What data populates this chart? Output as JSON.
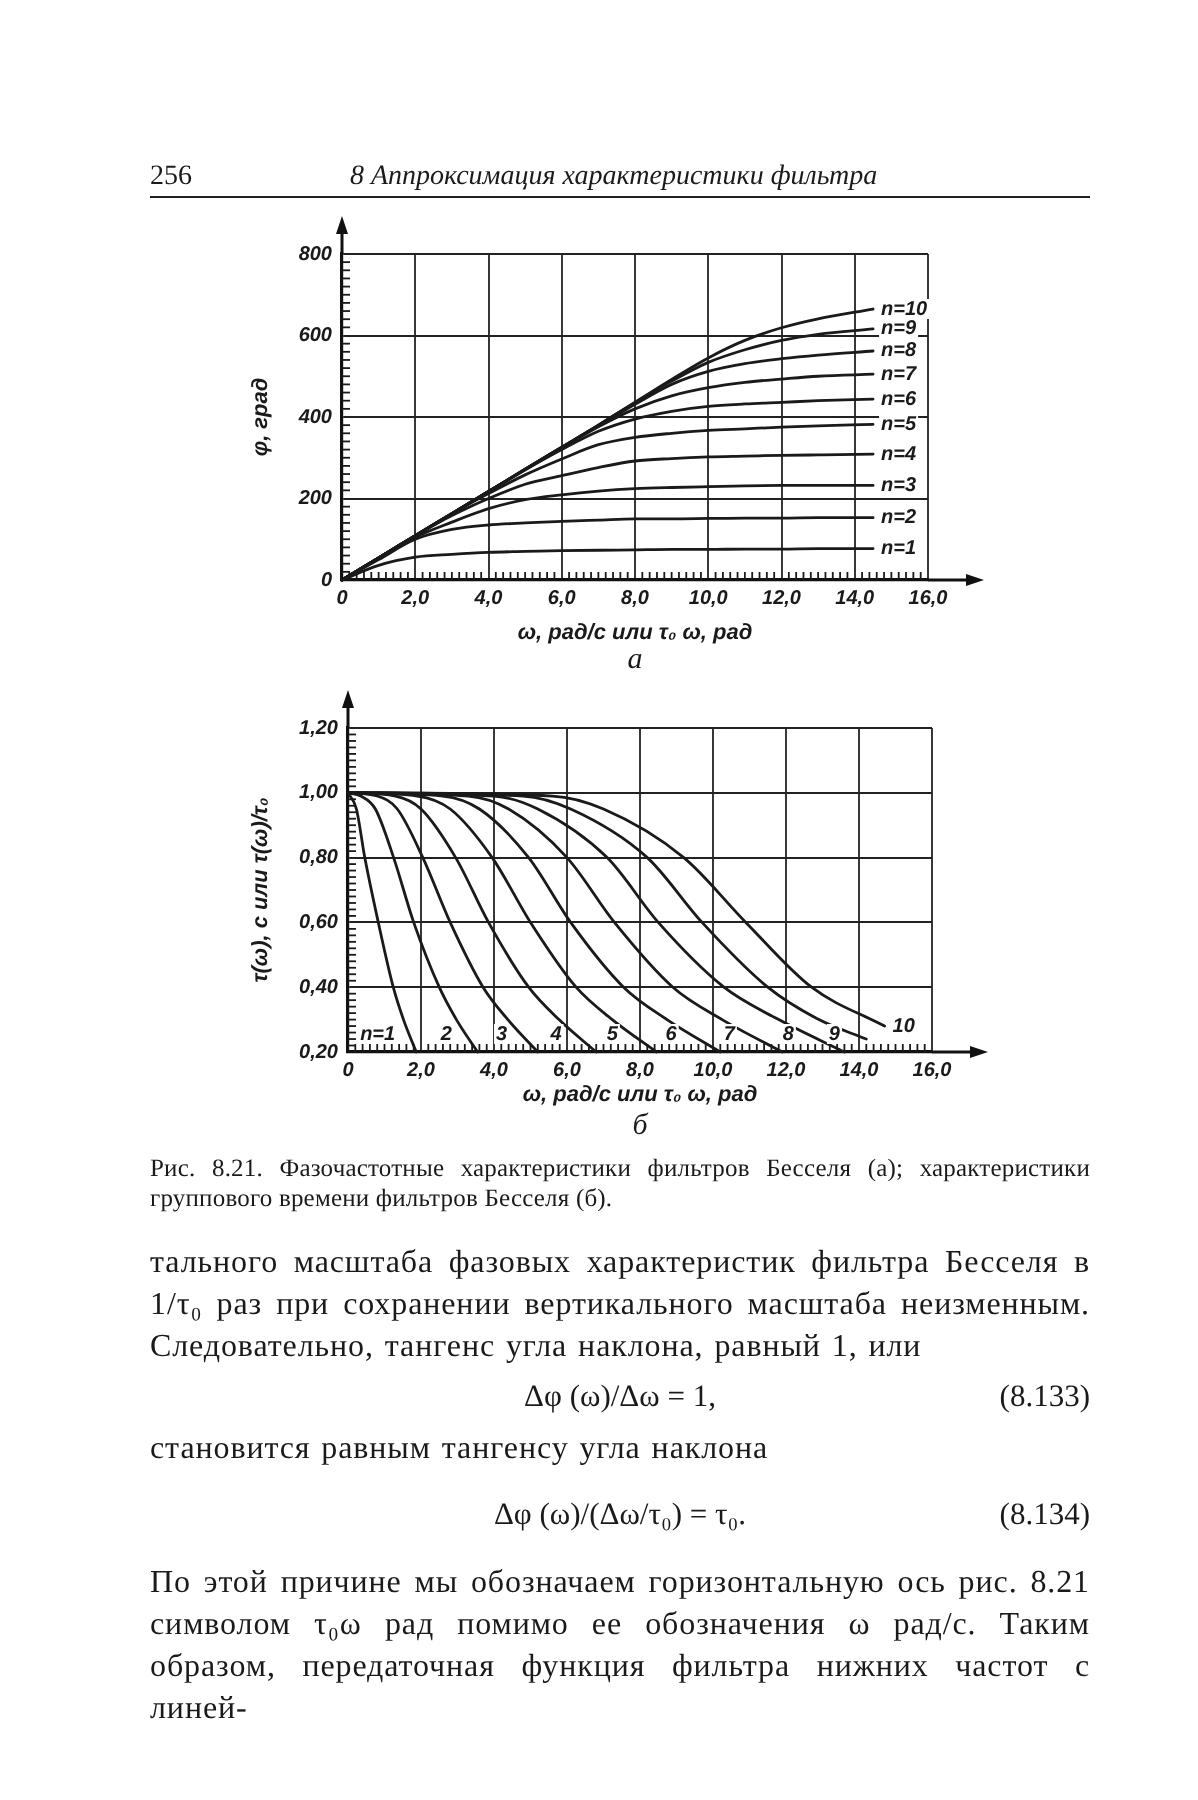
{
  "chart_data": [
    {
      "type": "other",
      "title": "8 Аппроксимация характеристики фильтра",
      "annotations": [
        "256"
      ]
    },
    {
      "type": "line",
      "xlabel": "ω, рад/с или τ₀ ω, рад",
      "ylabel": "φ, град",
      "annotations": [
        "а"
      ],
      "x": [
        0,
        1,
        2,
        3,
        4,
        5,
        6,
        7,
        8,
        9,
        10,
        11,
        12,
        13,
        14.5
      ],
      "xlim": [
        0,
        16
      ],
      "ylim": [
        0,
        800
      ],
      "xticks": [
        0,
        {
          "value": 0.2,
          "label": null
        },
        {
          "value": 0.4,
          "label": null
        },
        {
          "value": 0.6,
          "label": null
        },
        {
          "value": 0.8,
          "label": null
        },
        {
          "value": 1,
          "label": null
        },
        {
          "value": 1.2,
          "label": null
        },
        {
          "value": 1.4,
          "label": null
        },
        {
          "value": 1.6,
          "label": null
        },
        {
          "value": 1.8,
          "label": null
        },
        {
          "value": 2,
          "label": "2,0"
        },
        {
          "value": 2.2,
          "label": null
        },
        {
          "value": 2.4,
          "label": null
        },
        {
          "value": 2.6,
          "label": null
        },
        {
          "value": 2.8,
          "label": null
        },
        {
          "value": 3,
          "label": null
        },
        {
          "value": 3.2,
          "label": null
        },
        {
          "value": 3.4,
          "label": null
        },
        {
          "value": 3.6,
          "label": null
        },
        {
          "value": 3.8,
          "label": null
        },
        {
          "value": 4,
          "label": "4,0"
        },
        {
          "value": 4.2,
          "label": null
        },
        {
          "value": 4.4,
          "label": null
        },
        {
          "value": 4.6,
          "label": null
        },
        {
          "value": 4.8,
          "label": null
        },
        {
          "value": 5,
          "label": null
        },
        {
          "value": 5.2,
          "label": null
        },
        {
          "value": 5.4,
          "label": null
        },
        {
          "value": 5.6,
          "label": null
        },
        {
          "value": 5.8,
          "label": null
        },
        {
          "value": 6,
          "label": "6,0"
        },
        {
          "value": 6.2,
          "label": null
        },
        {
          "value": 6.4,
          "label": null
        },
        {
          "value": 6.6,
          "label": null
        },
        {
          "value": 6.8,
          "label": null
        },
        {
          "value": 7,
          "label": null
        },
        {
          "value": 7.2,
          "label": null
        },
        {
          "value": 7.4,
          "label": null
        },
        {
          "value": 7.6,
          "label": null
        },
        {
          "value": 7.8,
          "label": null
        },
        {
          "value": 8,
          "label": "8,0"
        },
        {
          "value": 8.2,
          "label": null
        },
        {
          "value": 8.4,
          "label": null
        },
        {
          "value": 8.6,
          "label": null
        },
        {
          "value": 8.8,
          "label": null
        },
        {
          "value": 9,
          "label": null
        },
        {
          "value": 9.2,
          "label": null
        },
        {
          "value": 9.4,
          "label": null
        },
        {
          "value": 9.6,
          "label": null
        },
        {
          "value": 9.8,
          "label": null
        },
        {
          "value": 10,
          "label": "10,0"
        },
        {
          "value": 10.2,
          "label": null
        },
        {
          "value": 10.4,
          "label": null
        },
        {
          "value": 10.6,
          "label": null
        },
        {
          "value": 10.8,
          "label": null
        },
        {
          "value": 11,
          "label": null
        },
        {
          "value": 11.2,
          "label": null
        },
        {
          "value": 11.4,
          "label": null
        },
        {
          "value": 11.6,
          "label": null
        },
        {
          "value": 11.8,
          "label": null
        },
        {
          "value": 12,
          "label": "12,0"
        },
        {
          "value": 12.2,
          "label": null
        },
        {
          "value": 12.4,
          "label": null
        },
        {
          "value": 12.6,
          "label": null
        },
        {
          "value": 12.8,
          "label": null
        },
        {
          "value": 13,
          "label": null
        },
        {
          "value": 13.2,
          "label": null
        },
        {
          "value": 13.4,
          "label": null
        },
        {
          "value": 13.6,
          "label": null
        },
        {
          "value": 13.8,
          "label": null
        },
        {
          "value": 14,
          "label": "14,0"
        },
        {
          "value": 14.2,
          "label": null
        },
        {
          "value": 14.4,
          "label": null
        },
        {
          "value": 14.6,
          "label": null
        },
        {
          "value": 14.8,
          "label": null
        },
        {
          "value": 15,
          "label": null
        },
        {
          "value": 15.2,
          "label": null
        },
        {
          "value": 15.4,
          "label": null
        },
        {
          "value": 15.6,
          "label": null
        },
        {
          "value": 15.8,
          "label": null
        },
        {
          "value": 16,
          "label": "16,0"
        }
      ],
      "yticks": [
        0,
        {
          "value": 20,
          "label": null
        },
        {
          "value": 40,
          "label": null
        },
        {
          "value": 60,
          "label": null
        },
        {
          "value": 80,
          "label": null
        },
        {
          "value": 100,
          "label": null
        },
        {
          "value": 120,
          "label": null
        },
        {
          "value": 140,
          "label": null
        },
        {
          "value": 160,
          "label": null
        },
        {
          "value": 180,
          "label": null
        },
        200,
        {
          "value": 220,
          "label": null
        },
        {
          "value": 240,
          "label": null
        },
        {
          "value": 260,
          "label": null
        },
        {
          "value": 280,
          "label": null
        },
        {
          "value": 300,
          "label": null
        },
        {
          "value": 320,
          "label": null
        },
        {
          "value": 340,
          "label": null
        },
        {
          "value": 360,
          "label": null
        },
        {
          "value": 380,
          "label": null
        },
        400,
        {
          "value": 420,
          "label": null
        },
        {
          "value": 440,
          "label": null
        },
        {
          "value": 460,
          "label": null
        },
        {
          "value": 480,
          "label": null
        },
        {
          "value": 500,
          "label": null
        },
        {
          "value": 520,
          "label": null
        },
        {
          "value": 540,
          "label": null
        },
        {
          "value": 560,
          "label": null
        },
        {
          "value": 580,
          "label": null
        },
        600,
        {
          "value": 620,
          "label": null
        },
        {
          "value": 640,
          "label": null
        },
        {
          "value": 660,
          "label": null
        },
        {
          "value": 680,
          "label": null
        },
        {
          "value": 700,
          "label": null
        },
        {
          "value": 720,
          "label": null
        },
        {
          "value": 740,
          "label": null
        },
        {
          "value": 760,
          "label": null
        },
        {
          "value": 780,
          "label": null
        },
        800
      ],
      "grid": true,
      "line_style": "solid",
      "series": [
        {
          "name": "n=1",
          "color": "#1a1a1a",
          "values": [
            0,
            36,
            56,
            63,
            68,
            70,
            72,
            73,
            74,
            75,
            75,
            76,
            76,
            77,
            77
          ]
        },
        {
          "name": "n=2",
          "color": "#1a1a1a",
          "values": [
            0,
            50,
            100,
            124,
            135,
            140,
            144,
            147,
            150,
            150,
            151,
            152,
            152,
            153,
            153
          ]
        },
        {
          "name": "n=3",
          "color": "#1a1a1a",
          "values": [
            0,
            54,
            105,
            142,
            175,
            197,
            209,
            218,
            224,
            227,
            229,
            231,
            232,
            232,
            232
          ]
        },
        {
          "name": "n=4",
          "color": "#1a1a1a",
          "values": [
            0,
            54,
            108,
            158,
            200,
            235,
            256,
            276,
            292,
            298,
            302,
            304,
            306,
            307,
            309
          ]
        },
        {
          "name": "n=5",
          "color": "#1a1a1a",
          "values": [
            0,
            54,
            109,
            163,
            212,
            258,
            297,
            332,
            350,
            360,
            367,
            371,
            375,
            378,
            382
          ]
        },
        {
          "name": "n=6",
          "color": "#1a1a1a",
          "values": [
            0,
            54,
            109,
            163,
            217,
            270,
            320,
            365,
            395,
            414,
            426,
            432,
            436,
            440,
            444
          ]
        },
        {
          "name": "n=7",
          "color": "#1a1a1a",
          "values": [
            0,
            54,
            109,
            163,
            217,
            271,
            324,
            376,
            420,
            452,
            472,
            485,
            493,
            500,
            505
          ]
        },
        {
          "name": "n=8",
          "color": "#1a1a1a",
          "values": [
            0,
            54,
            109,
            163,
            217,
            272,
            326,
            378,
            431,
            480,
            512,
            531,
            543,
            552,
            562
          ]
        },
        {
          "name": "n=9",
          "color": "#1a1a1a",
          "values": [
            0,
            54,
            109,
            163,
            217,
            272,
            326,
            380,
            436,
            488,
            534,
            565,
            588,
            603,
            616
          ]
        },
        {
          "name": "n=10",
          "color": "#1a1a1a",
          "values": [
            0,
            54,
            109,
            163,
            217,
            272,
            326,
            380,
            436,
            492,
            545,
            588,
            619,
            641,
            665
          ]
        }
      ]
    },
    {
      "type": "line",
      "xlabel": "ω, рад/с или τ₀ ω, рад",
      "ylabel": "τ(ω), с или τ(ω)/τ₀",
      "annotations": [
        "б"
      ],
      "xlim": [
        0,
        16
      ],
      "ylim": [
        0.2,
        1.2
      ],
      "xticks": [
        0,
        {
          "value": 0.2,
          "label": null
        },
        {
          "value": 0.4,
          "label": null
        },
        {
          "value": 0.6,
          "label": null
        },
        {
          "value": 0.8,
          "label": null
        },
        {
          "value": 1,
          "label": null
        },
        {
          "value": 1.2,
          "label": null
        },
        {
          "value": 1.4,
          "label": null
        },
        {
          "value": 1.6,
          "label": null
        },
        {
          "value": 1.8,
          "label": null
        },
        {
          "value": 2,
          "label": "2,0"
        },
        {
          "value": 2.2,
          "label": null
        },
        {
          "value": 2.4,
          "label": null
        },
        {
          "value": 2.6,
          "label": null
        },
        {
          "value": 2.8,
          "label": null
        },
        {
          "value": 3,
          "label": null
        },
        {
          "value": 3.2,
          "label": null
        },
        {
          "value": 3.4,
          "label": null
        },
        {
          "value": 3.6,
          "label": null
        },
        {
          "value": 3.8,
          "label": null
        },
        {
          "value": 4,
          "label": "4,0"
        },
        {
          "value": 4.2,
          "label": null
        },
        {
          "value": 4.4,
          "label": null
        },
        {
          "value": 4.6,
          "label": null
        },
        {
          "value": 4.8,
          "label": null
        },
        {
          "value": 5,
          "label": null
        },
        {
          "value": 5.2,
          "label": null
        },
        {
          "value": 5.4,
          "label": null
        },
        {
          "value": 5.6,
          "label": null
        },
        {
          "value": 5.8,
          "label": null
        },
        {
          "value": 6,
          "label": "6,0"
        },
        {
          "value": 6.2,
          "label": null
        },
        {
          "value": 6.4,
          "label": null
        },
        {
          "value": 6.6,
          "label": null
        },
        {
          "value": 6.8,
          "label": null
        },
        {
          "value": 7,
          "label": null
        },
        {
          "value": 7.2,
          "label": null
        },
        {
          "value": 7.4,
          "label": null
        },
        {
          "value": 7.6,
          "label": null
        },
        {
          "value": 7.8,
          "label": null
        },
        {
          "value": 8,
          "label": "8,0"
        },
        {
          "value": 8.2,
          "label": null
        },
        {
          "value": 8.4,
          "label": null
        },
        {
          "value": 8.6,
          "label": null
        },
        {
          "value": 8.8,
          "label": null
        },
        {
          "value": 9,
          "label": null
        },
        {
          "value": 9.2,
          "label": null
        },
        {
          "value": 9.4,
          "label": null
        },
        {
          "value": 9.6,
          "label": null
        },
        {
          "value": 9.8,
          "label": null
        },
        {
          "value": 10,
          "label": "10,0"
        },
        {
          "value": 10.2,
          "label": null
        },
        {
          "value": 10.4,
          "label": null
        },
        {
          "value": 10.6,
          "label": null
        },
        {
          "value": 10.8,
          "label": null
        },
        {
          "value": 11,
          "label": null
        },
        {
          "value": 11.2,
          "label": null
        },
        {
          "value": 11.4,
          "label": null
        },
        {
          "value": 11.6,
          "label": null
        },
        {
          "value": 11.8,
          "label": null
        },
        {
          "value": 12,
          "label": "12,0"
        },
        {
          "value": 12.2,
          "label": null
        },
        {
          "value": 12.4,
          "label": null
        },
        {
          "value": 12.6,
          "label": null
        },
        {
          "value": 12.8,
          "label": null
        },
        {
          "value": 13,
          "label": null
        },
        {
          "value": 13.2,
          "label": null
        },
        {
          "value": 13.4,
          "label": null
        },
        {
          "value": 13.6,
          "label": null
        },
        {
          "value": 13.8,
          "label": null
        },
        {
          "value": 14,
          "label": "14,0"
        },
        {
          "value": 14.2,
          "label": null
        },
        {
          "value": 14.4,
          "label": null
        },
        {
          "value": 14.6,
          "label": null
        },
        {
          "value": 14.8,
          "label": null
        },
        {
          "value": 15,
          "label": null
        },
        {
          "value": 15.2,
          "label": null
        },
        {
          "value": 15.4,
          "label": null
        },
        {
          "value": 15.6,
          "label": null
        },
        {
          "value": 15.8,
          "label": null
        },
        {
          "value": 16,
          "label": "16,0"
        }
      ],
      "yticks": [
        {
          "value": 0.2,
          "label": "0,20"
        },
        {
          "value": 0.22,
          "label": null
        },
        {
          "value": 0.24,
          "label": null
        },
        {
          "value": 0.26,
          "label": null
        },
        {
          "value": 0.28,
          "label": null
        },
        {
          "value": 0.3,
          "label": null
        },
        {
          "value": 0.32,
          "label": null
        },
        {
          "value": 0.34,
          "label": null
        },
        {
          "value": 0.36,
          "label": null
        },
        {
          "value": 0.38,
          "label": null
        },
        {
          "value": 0.4,
          "label": "0,40"
        },
        {
          "value": 0.42,
          "label": null
        },
        {
          "value": 0.44,
          "label": null
        },
        {
          "value": 0.46,
          "label": null
        },
        {
          "value": 0.48,
          "label": null
        },
        {
          "value": 0.5,
          "label": null
        },
        {
          "value": 0.52,
          "label": null
        },
        {
          "value": 0.54,
          "label": null
        },
        {
          "value": 0.56,
          "label": null
        },
        {
          "value": 0.58,
          "label": null
        },
        {
          "value": 0.6,
          "label": "0,60"
        },
        {
          "value": 0.62,
          "label": null
        },
        {
          "value": 0.64,
          "label": null
        },
        {
          "value": 0.66,
          "label": null
        },
        {
          "value": 0.68,
          "label": null
        },
        {
          "value": 0.7,
          "label": null
        },
        {
          "value": 0.72,
          "label": null
        },
        {
          "value": 0.74,
          "label": null
        },
        {
          "value": 0.76,
          "label": null
        },
        {
          "value": 0.78,
          "label": null
        },
        {
          "value": 0.8,
          "label": "0,80"
        },
        {
          "value": 0.82,
          "label": null
        },
        {
          "value": 0.84,
          "label": null
        },
        {
          "value": 0.86,
          "label": null
        },
        {
          "value": 0.88,
          "label": null
        },
        {
          "value": 0.9,
          "label": null
        },
        {
          "value": 0.92,
          "label": null
        },
        {
          "value": 0.94,
          "label": null
        },
        {
          "value": 0.96,
          "label": null
        },
        {
          "value": 0.98,
          "label": null
        },
        {
          "value": 1,
          "label": "1,00"
        },
        {
          "value": 1.02,
          "label": null
        },
        {
          "value": 1.04,
          "label": null
        },
        {
          "value": 1.06,
          "label": null
        },
        {
          "value": 1.08,
          "label": null
        },
        {
          "value": 1.1,
          "label": null
        },
        {
          "value": 1.12,
          "label": null
        },
        {
          "value": 1.14,
          "label": null
        },
        {
          "value": 1.16,
          "label": null
        },
        {
          "value": 1.18,
          "label": null
        },
        {
          "value": 1.2,
          "label": "1,20"
        }
      ],
      "grid": true,
      "line_style": "solid",
      "series": [
        {
          "name": "n=1",
          "color": "#1a1a1a",
          "x": [
            0,
            0.23,
            0.46,
            0.83,
            1.24,
            1.52,
            1.87
          ],
          "values": [
            1,
            0.95,
            0.8,
            0.6,
            0.4,
            0.3,
            0.2
          ]
        },
        {
          "name": "2",
          "color": "#1a1a1a",
          "x": [
            0,
            0.35,
            0.75,
            1.25,
            1.8,
            2.5,
            2.97,
            3.55
          ],
          "values": [
            1,
            0.99,
            0.95,
            0.8,
            0.6,
            0.4,
            0.3,
            0.2
          ]
        },
        {
          "name": "3",
          "color": "#1a1a1a",
          "x": [
            0,
            0.8,
            1.35,
            2.05,
            2.8,
            3.7,
            4.38,
            5.2
          ],
          "values": [
            1,
            0.99,
            0.95,
            0.8,
            0.6,
            0.4,
            0.3,
            0.2
          ]
        },
        {
          "name": "4",
          "color": "#1a1a1a",
          "x": [
            0,
            1.3,
            2,
            2.95,
            3.85,
            4.95,
            5.78,
            6.8
          ],
          "values": [
            1,
            0.99,
            0.95,
            0.8,
            0.6,
            0.4,
            0.3,
            0.2
          ]
        },
        {
          "name": "5",
          "color": "#1a1a1a",
          "x": [
            0,
            1.9,
            2.8,
            3.95,
            5,
            6.25,
            7.24,
            8.45
          ],
          "values": [
            1,
            0.99,
            0.95,
            0.8,
            0.6,
            0.4,
            0.3,
            0.2
          ]
        },
        {
          "name": "6",
          "color": "#1a1a1a",
          "x": [
            0,
            2.6,
            3.6,
            4.95,
            6.1,
            7.55,
            8.74,
            10.2
          ],
          "values": [
            1,
            0.99,
            0.95,
            0.8,
            0.6,
            0.4,
            0.3,
            0.2
          ]
        },
        {
          "name": "7",
          "color": "#1a1a1a",
          "x": [
            0,
            3.3,
            4.4,
            6,
            7.3,
            8.9,
            10.25,
            11.9
          ],
          "values": [
            1,
            0.99,
            0.95,
            0.8,
            0.6,
            0.4,
            0.3,
            0.2
          ]
        },
        {
          "name": "8",
          "color": "#1a1a1a",
          "x": [
            0,
            4,
            5.2,
            7.1,
            8.5,
            10.3,
            11.8,
            13.6
          ],
          "values": [
            1,
            0.99,
            0.95,
            0.8,
            0.6,
            0.4,
            0.3,
            0.2
          ]
        },
        {
          "name": "9",
          "color": "#1a1a1a",
          "x": [
            0,
            4.8,
            6.1,
            8.2,
            9.7,
            11.5,
            12.9,
            14.2
          ],
          "values": [
            1,
            0.99,
            0.95,
            0.8,
            0.6,
            0.4,
            0.3,
            0.24
          ]
        },
        {
          "name": "10",
          "color": "#1a1a1a",
          "x": [
            0,
            5.6,
            7,
            9.2,
            10.9,
            12.7,
            14.7
          ],
          "values": [
            1,
            0.99,
            0.95,
            0.8,
            0.6,
            0.4,
            0.28
          ]
        }
      ]
    },
    {
      "type": "other",
      "annotations": [
        "Рис. 8.21. Фазочастотные характеристики фильтров Бесселя (а); характеристики группового времени фильтров Бесселя (б).",
        "тального масштаба фазовых характеристик фильтра Бесселя в 1/τ₀ раз при сохранении вертикального масштаба неизменным. Следовательно, тангенс угла наклона, равный 1, или",
        "Δφ (ω)/Δω = 1,",
        "(8.133)",
        "становится равным тангенсу угла наклона",
        "Δφ (ω)/(Δω/τ₀) = τ₀.",
        "(8.134)",
        "По этой причине мы обозначаем горизонтальную ось рис. 8.21 символом τ₀ω рад помимо ее обозначения ω рад/с. Таким образом, передаточная функция фильтра нижних частот с линей-"
      ]
    }
  ]
}
